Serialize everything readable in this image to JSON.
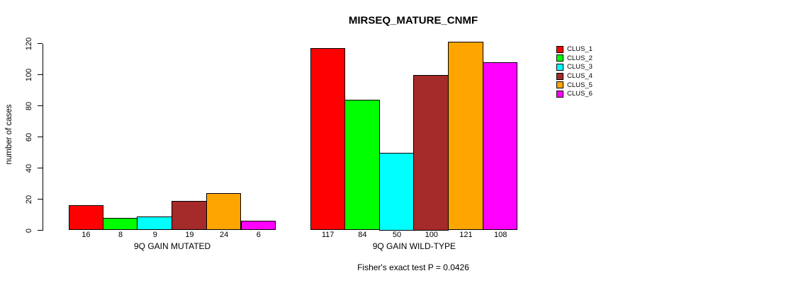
{
  "chart_data": {
    "type": "bar",
    "title": "MIRSEQ_MATURE_CNMF",
    "ylabel": "number of cases",
    "ylim": [
      0,
      120
    ],
    "yticks": [
      0,
      20,
      40,
      60,
      80,
      100,
      120
    ],
    "grid": false,
    "legend_position": "right",
    "series_labels": [
      "CLUS_1",
      "CLUS_2",
      "CLUS_3",
      "CLUS_4",
      "CLUS_5",
      "CLUS_6"
    ],
    "series_colors": [
      "#FF0000",
      "#00FF00",
      "#00FFFF",
      "#A52A2A",
      "#FFA500",
      "#FF00FF"
    ],
    "groups": [
      {
        "label": "9Q GAIN MUTATED",
        "values": [
          16,
          8,
          9,
          19,
          24,
          6
        ]
      },
      {
        "label": "9Q GAIN WILD-TYPE",
        "values": [
          117,
          84,
          50,
          100,
          121,
          108
        ]
      }
    ],
    "footnote": "Fisher's exact test P = 0.0426"
  }
}
